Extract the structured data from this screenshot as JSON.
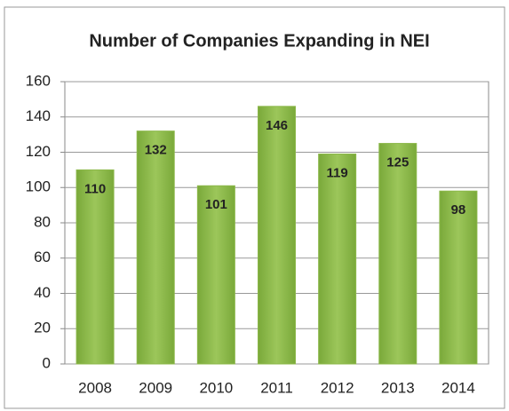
{
  "chart_data": {
    "type": "bar",
    "title": "Number of Companies Expanding in NEI",
    "categories": [
      "2008",
      "2009",
      "2010",
      "2011",
      "2012",
      "2013",
      "2014"
    ],
    "values": [
      110,
      132,
      101,
      146,
      119,
      125,
      98
    ],
    "color": "#8cb84a",
    "ylim": [
      0,
      160
    ],
    "yticks": [
      0,
      20,
      40,
      60,
      80,
      100,
      120,
      140,
      160
    ],
    "grid": true
  }
}
